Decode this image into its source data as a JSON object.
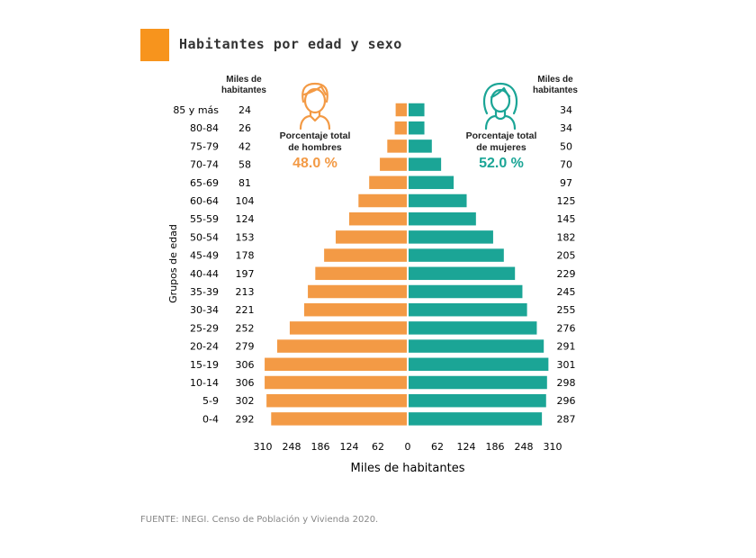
{
  "header": {
    "title": "Habitantes por edad y sexo",
    "accent_color": "#F7941D"
  },
  "labels": {
    "miles_left": [
      "Miles de",
      "habitantes"
    ],
    "miles_right": [
      "Miles de",
      "habitantes"
    ],
    "men_caption": [
      "Porcentaje total",
      "de hombres"
    ],
    "men_pct": "48.0 %",
    "women_caption": [
      "Porcentaje total",
      "de mujeres"
    ],
    "women_pct": "52.0 %",
    "men_icon": "man-icon",
    "women_icon": "woman-icon"
  },
  "source": "FUENTE: INEGI. Censo de Población y Vivienda 2020.",
  "colors": {
    "men": "#F39A45",
    "women": "#1BA596"
  },
  "chart_data": {
    "type": "bar",
    "orientation": "horizontal-pyramid",
    "ylabel": "Grupos de edad",
    "xlabel": "Miles de habitantes",
    "xlim": [
      -310,
      310
    ],
    "xticks": [
      "310",
      "248",
      "186",
      "124",
      "62",
      "0",
      "62",
      "124",
      "186",
      "248",
      "310"
    ],
    "categories": [
      "85 y más",
      "80-84",
      "75-79",
      "70-74",
      "65-69",
      "60-64",
      "55-59",
      "50-54",
      "45-49",
      "40-44",
      "35-39",
      "30-34",
      "25-29",
      "20-24",
      "15-19",
      "10-14",
      "5-9",
      "0-4"
    ],
    "series": [
      {
        "values": [
          24,
          26,
          42,
          58,
          81,
          104,
          124,
          153,
          178,
          197,
          213,
          221,
          252,
          279,
          306,
          306,
          302,
          292
        ]
      },
      {
        "values": [
          34,
          34,
          50,
          70,
          97,
          125,
          145,
          182,
          205,
          229,
          245,
          255,
          276,
          291,
          301,
          298,
          296,
          287
        ]
      }
    ]
  }
}
